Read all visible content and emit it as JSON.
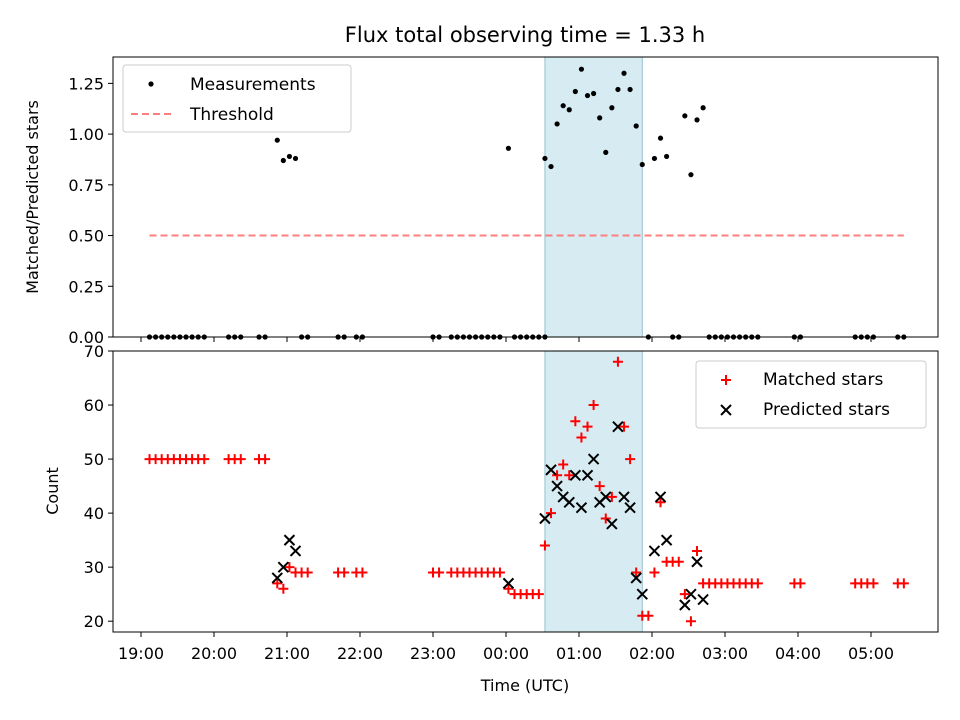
{
  "figure": {
    "title": "Flux total observing time = 1.33 h",
    "xlabel": "Time (UTC)",
    "x_ticks": [
      "19:00",
      "20:00",
      "21:00",
      "22:00",
      "23:00",
      "00:00",
      "01:00",
      "02:00",
      "03:00",
      "04:00",
      "05:00"
    ],
    "highlight_span": [
      "00:32",
      "01:52"
    ],
    "highlight_color": "#add8e6"
  },
  "chart_data": [
    {
      "type": "scatter",
      "ylabel": "Matched/Predicted stars",
      "ylim": [
        0,
        1.38
      ],
      "y_ticks": [
        "0.00",
        "0.25",
        "0.50",
        "0.75",
        "1.00",
        "1.25"
      ],
      "legend_position": "top-left",
      "series": [
        {
          "name": "Measurements",
          "marker": "dot",
          "color": "#000000",
          "points": [
            [
              "19:07",
              0
            ],
            [
              "19:12",
              0
            ],
            [
              "19:17",
              0
            ],
            [
              "19:22",
              0
            ],
            [
              "19:27",
              0
            ],
            [
              "19:32",
              0
            ],
            [
              "19:37",
              0
            ],
            [
              "19:42",
              0
            ],
            [
              "19:47",
              0
            ],
            [
              "19:52",
              0
            ],
            [
              "20:12",
              0
            ],
            [
              "20:17",
              0
            ],
            [
              "20:22",
              0
            ],
            [
              "20:37",
              0
            ],
            [
              "20:42",
              0
            ],
            [
              "20:52",
              0.97
            ],
            [
              "20:57",
              0.87
            ],
            [
              "21:02",
              0.89
            ],
            [
              "21:07",
              0.88
            ],
            [
              "21:12",
              0
            ],
            [
              "21:17",
              0
            ],
            [
              "21:42",
              0
            ],
            [
              "21:47",
              0
            ],
            [
              "21:57",
              0
            ],
            [
              "22:02",
              0
            ],
            [
              "23:00",
              0
            ],
            [
              "23:05",
              0
            ],
            [
              "23:15",
              0
            ],
            [
              "23:20",
              0
            ],
            [
              "23:25",
              0
            ],
            [
              "23:30",
              0
            ],
            [
              "23:35",
              0
            ],
            [
              "23:40",
              0
            ],
            [
              "23:45",
              0
            ],
            [
              "23:50",
              0
            ],
            [
              "23:55",
              0
            ],
            [
              "00:02",
              0.93
            ],
            [
              "00:07",
              0
            ],
            [
              "00:12",
              0
            ],
            [
              "00:17",
              0
            ],
            [
              "00:22",
              0
            ],
            [
              "00:27",
              0
            ],
            [
              "00:32",
              0
            ],
            [
              "00:32",
              0.88
            ],
            [
              "00:37",
              0.84
            ],
            [
              "00:42",
              1.05
            ],
            [
              "00:47",
              1.14
            ],
            [
              "00:52",
              1.12
            ],
            [
              "00:57",
              1.21
            ],
            [
              "01:02",
              1.32
            ],
            [
              "01:07",
              1.19
            ],
            [
              "01:12",
              1.2
            ],
            [
              "01:17",
              1.08
            ],
            [
              "01:22",
              0.91
            ],
            [
              "01:27",
              1.13
            ],
            [
              "01:32",
              1.22
            ],
            [
              "01:37",
              1.3
            ],
            [
              "01:42",
              1.22
            ],
            [
              "01:47",
              1.04
            ],
            [
              "01:52",
              0.85
            ],
            [
              "01:57",
              0
            ],
            [
              "02:02",
              0.88
            ],
            [
              "02:07",
              0.98
            ],
            [
              "02:12",
              0.89
            ],
            [
              "02:17",
              0
            ],
            [
              "02:22",
              0
            ],
            [
              "02:27",
              1.09
            ],
            [
              "02:32",
              0.8
            ],
            [
              "02:37",
              1.07
            ],
            [
              "02:42",
              1.13
            ],
            [
              "02:47",
              0
            ],
            [
              "02:52",
              0
            ],
            [
              "02:57",
              0
            ],
            [
              "03:02",
              0
            ],
            [
              "03:07",
              0
            ],
            [
              "03:12",
              0
            ],
            [
              "03:17",
              0
            ],
            [
              "03:22",
              0
            ],
            [
              "03:27",
              0
            ],
            [
              "03:57",
              0
            ],
            [
              "04:02",
              0
            ],
            [
              "04:47",
              0
            ],
            [
              "04:52",
              0
            ],
            [
              "04:57",
              0
            ],
            [
              "05:02",
              0
            ],
            [
              "05:22",
              0
            ],
            [
              "05:27",
              0
            ]
          ]
        },
        {
          "name": "Threshold",
          "marker": "dashed-line",
          "color": "#ff7f7f",
          "points": [
            [
              "19:07",
              0.5
            ],
            [
              "05:27",
              0.5
            ]
          ]
        }
      ]
    },
    {
      "type": "scatter",
      "ylabel": "Count",
      "ylim": [
        18,
        70
      ],
      "y_ticks": [
        "20",
        "30",
        "40",
        "50",
        "60",
        "70"
      ],
      "legend_position": "top-right",
      "series": [
        {
          "name": "Matched stars",
          "marker": "plus",
          "color": "#ff0000",
          "points": [
            [
              "19:07",
              50
            ],
            [
              "19:12",
              50
            ],
            [
              "19:17",
              50
            ],
            [
              "19:22",
              50
            ],
            [
              "19:27",
              50
            ],
            [
              "19:32",
              50
            ],
            [
              "19:37",
              50
            ],
            [
              "19:42",
              50
            ],
            [
              "19:47",
              50
            ],
            [
              "19:52",
              50
            ],
            [
              "20:12",
              50
            ],
            [
              "20:17",
              50
            ],
            [
              "20:22",
              50
            ],
            [
              "20:37",
              50
            ],
            [
              "20:42",
              50
            ],
            [
              "20:52",
              27
            ],
            [
              "20:57",
              26
            ],
            [
              "21:02",
              30
            ],
            [
              "21:07",
              29
            ],
            [
              "21:12",
              29
            ],
            [
              "21:17",
              29
            ],
            [
              "21:42",
              29
            ],
            [
              "21:47",
              29
            ],
            [
              "21:57",
              29
            ],
            [
              "22:02",
              29
            ],
            [
              "23:00",
              29
            ],
            [
              "23:05",
              29
            ],
            [
              "23:15",
              29
            ],
            [
              "23:20",
              29
            ],
            [
              "23:25",
              29
            ],
            [
              "23:30",
              29
            ],
            [
              "23:35",
              29
            ],
            [
              "23:40",
              29
            ],
            [
              "23:45",
              29
            ],
            [
              "23:50",
              29
            ],
            [
              "23:55",
              29
            ],
            [
              "00:02",
              26
            ],
            [
              "00:07",
              25
            ],
            [
              "00:12",
              25
            ],
            [
              "00:17",
              25
            ],
            [
              "00:22",
              25
            ],
            [
              "00:27",
              25
            ],
            [
              "00:32",
              34
            ],
            [
              "00:37",
              40
            ],
            [
              "00:42",
              47
            ],
            [
              "00:47",
              49
            ],
            [
              "00:52",
              47
            ],
            [
              "00:57",
              57
            ],
            [
              "01:02",
              54
            ],
            [
              "01:07",
              56
            ],
            [
              "01:12",
              60
            ],
            [
              "01:17",
              45
            ],
            [
              "01:22",
              39
            ],
            [
              "01:27",
              43
            ],
            [
              "01:32",
              68
            ],
            [
              "01:37",
              56
            ],
            [
              "01:42",
              50
            ],
            [
              "01:47",
              29
            ],
            [
              "01:52",
              21
            ],
            [
              "01:57",
              21
            ],
            [
              "02:02",
              29
            ],
            [
              "02:07",
              42
            ],
            [
              "02:12",
              31
            ],
            [
              "02:17",
              31
            ],
            [
              "02:22",
              31
            ],
            [
              "02:27",
              25
            ],
            [
              "02:32",
              20
            ],
            [
              "02:37",
              33
            ],
            [
              "02:42",
              27
            ],
            [
              "02:47",
              27
            ],
            [
              "02:52",
              27
            ],
            [
              "02:57",
              27
            ],
            [
              "03:02",
              27
            ],
            [
              "03:07",
              27
            ],
            [
              "03:12",
              27
            ],
            [
              "03:17",
              27
            ],
            [
              "03:22",
              27
            ],
            [
              "03:27",
              27
            ],
            [
              "03:57",
              27
            ],
            [
              "04:02",
              27
            ],
            [
              "04:47",
              27
            ],
            [
              "04:52",
              27
            ],
            [
              "04:57",
              27
            ],
            [
              "05:02",
              27
            ],
            [
              "05:22",
              27
            ],
            [
              "05:27",
              27
            ]
          ]
        },
        {
          "name": "Predicted stars",
          "marker": "x",
          "color": "#000000",
          "points": [
            [
              "20:52",
              28
            ],
            [
              "20:57",
              30
            ],
            [
              "21:02",
              35
            ],
            [
              "21:07",
              33
            ],
            [
              "00:02",
              27
            ],
            [
              "00:32",
              39
            ],
            [
              "00:37",
              48
            ],
            [
              "00:42",
              45
            ],
            [
              "00:47",
              43
            ],
            [
              "00:52",
              42
            ],
            [
              "00:57",
              47
            ],
            [
              "01:02",
              41
            ],
            [
              "01:07",
              47
            ],
            [
              "01:12",
              50
            ],
            [
              "01:17",
              42
            ],
            [
              "01:22",
              43
            ],
            [
              "01:27",
              38
            ],
            [
              "01:32",
              56
            ],
            [
              "01:37",
              43
            ],
            [
              "01:42",
              41
            ],
            [
              "01:47",
              28
            ],
            [
              "01:52",
              25
            ],
            [
              "02:02",
              33
            ],
            [
              "02:07",
              43
            ],
            [
              "02:12",
              35
            ],
            [
              "02:27",
              23
            ],
            [
              "02:32",
              25
            ],
            [
              "02:37",
              31
            ],
            [
              "02:42",
              24
            ]
          ]
        }
      ]
    }
  ]
}
